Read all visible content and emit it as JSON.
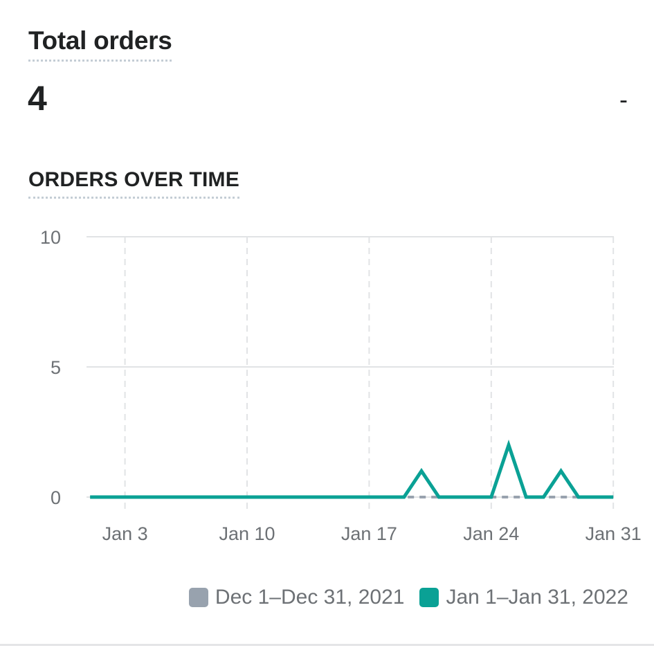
{
  "metric": {
    "title": "Total orders",
    "value": "4",
    "change": "-"
  },
  "section_title": "ORDERS OVER TIME",
  "colors": {
    "previous": "#98a2ae",
    "current": "#0aa195",
    "grid": "#e1e3e5",
    "axis_text": "#6d7175"
  },
  "chart_data": {
    "type": "line",
    "title": "ORDERS OVER TIME",
    "xlabel": "",
    "ylabel": "",
    "ylim": [
      0,
      10
    ],
    "yticks": [
      "0",
      "5",
      "10"
    ],
    "xlim": [
      1,
      31
    ],
    "xticks": [
      {
        "day": 3,
        "label": "Jan 3"
      },
      {
        "day": 10,
        "label": "Jan 10"
      },
      {
        "day": 17,
        "label": "Jan 17"
      },
      {
        "day": 24,
        "label": "Jan 24"
      },
      {
        "day": 31,
        "label": "Jan 31"
      }
    ],
    "grid": true,
    "legend_position": "bottom-right",
    "series": [
      {
        "name": "Dec 1–Dec 31, 2021",
        "style": "dashed",
        "x": [
          1,
          2,
          3,
          4,
          5,
          6,
          7,
          8,
          9,
          10,
          11,
          12,
          13,
          14,
          15,
          16,
          17,
          18,
          19,
          20,
          21,
          22,
          23,
          24,
          25,
          26,
          27,
          28,
          29,
          30,
          31
        ],
        "values": [
          0,
          0,
          0,
          0,
          0,
          0,
          0,
          0,
          0,
          0,
          0,
          0,
          0,
          0,
          0,
          0,
          0,
          0,
          0,
          0,
          0,
          0,
          0,
          0,
          0,
          0,
          0,
          0,
          0,
          0,
          0
        ]
      },
      {
        "name": "Jan 1–Jan 31, 2022",
        "style": "solid",
        "x": [
          1,
          2,
          3,
          4,
          5,
          6,
          7,
          8,
          9,
          10,
          11,
          12,
          13,
          14,
          15,
          16,
          17,
          18,
          19,
          20,
          21,
          22,
          23,
          24,
          25,
          26,
          27,
          28,
          29,
          30,
          31
        ],
        "values": [
          0,
          0,
          0,
          0,
          0,
          0,
          0,
          0,
          0,
          0,
          0,
          0,
          0,
          0,
          0,
          0,
          0,
          0,
          0,
          1,
          0,
          0,
          0,
          0,
          2,
          0,
          0,
          1,
          0,
          0,
          0
        ]
      }
    ]
  }
}
